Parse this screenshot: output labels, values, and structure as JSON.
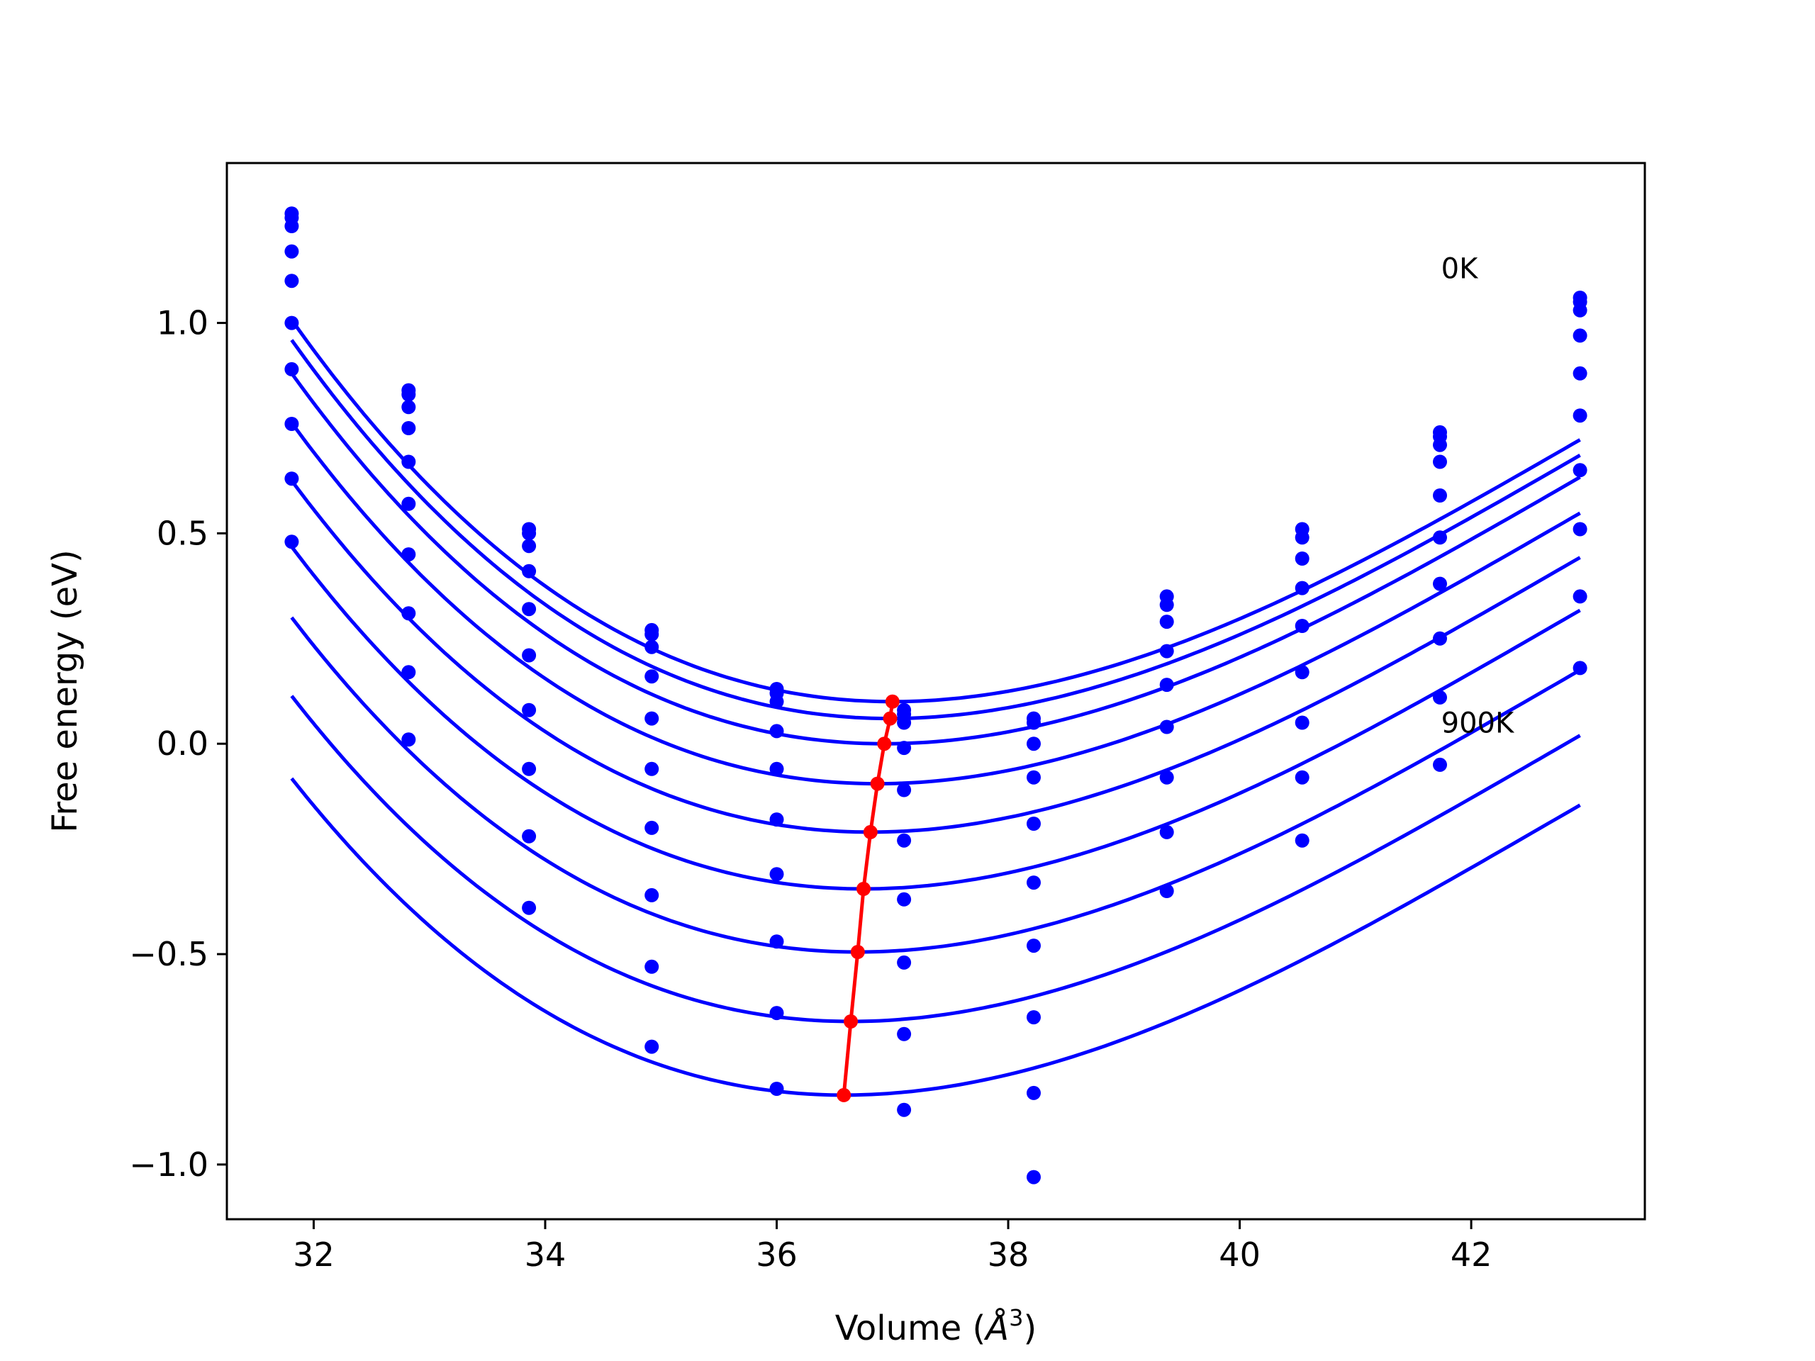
{
  "chart_data": {
    "type": "scatter",
    "title": "",
    "xlabel": "Volume (Å³)",
    "xlabel_main": "Volume (",
    "xlabel_unit": "Å",
    "xlabel_exp": "3",
    "xlabel_close": ")",
    "ylabel": "Free energy (eV)",
    "xlim": [
      31.25,
      43.5
    ],
    "ylim": [
      -1.13,
      1.38
    ],
    "xticks": [
      32,
      34,
      36,
      38,
      40,
      42
    ],
    "xtick_labels": [
      "32",
      "34",
      "36",
      "38",
      "40",
      "42"
    ],
    "yticks": [
      -1.0,
      -0.5,
      0.0,
      0.5,
      1.0
    ],
    "ytick_labels": [
      "−1.0",
      "−0.5",
      "0.0",
      "0.5",
      "1.0"
    ],
    "grid": false,
    "annotations": [
      {
        "text": "0K",
        "x": 41.74,
        "y": 1.13
      },
      {
        "text": "900K",
        "x": 41.74,
        "y": 0.05
      }
    ],
    "fit_color": "#0000ff",
    "minimum_color": "#ff0000",
    "volumes": [
      31.81,
      32.82,
      33.86,
      34.92,
      36.0,
      37.1,
      38.22,
      39.37,
      40.54,
      41.73,
      42.94
    ],
    "fits": [
      {
        "v0": 37.0,
        "e0": 0.1,
        "c": 0.0262
      },
      {
        "v0": 36.98,
        "e0": 0.06,
        "c": 0.0262
      },
      {
        "v0": 36.93,
        "e0": 0.0,
        "c": 0.0262
      },
      {
        "v0": 36.87,
        "e0": -0.095,
        "c": 0.0262
      },
      {
        "v0": 36.81,
        "e0": -0.21,
        "c": 0.0262
      },
      {
        "v0": 36.75,
        "e0": -0.345,
        "c": 0.0262
      },
      {
        "v0": 36.7,
        "e0": -0.495,
        "c": 0.0262
      },
      {
        "v0": 36.64,
        "e0": -0.66,
        "c": 0.0262
      },
      {
        "v0": 36.58,
        "e0": -0.835,
        "c": 0.0262
      }
    ],
    "series": [
      {
        "values": [
          1.26,
          0.84,
          0.51,
          0.27,
          0.13,
          0.08,
          0.06,
          0.35,
          0.51,
          0.74,
          1.06
        ]
      },
      {
        "values": [
          1.25,
          0.83,
          0.5,
          0.26,
          0.12,
          0.07,
          0.05,
          0.33,
          0.49,
          0.73,
          1.05
        ]
      },
      {
        "values": [
          1.23,
          0.8,
          0.47,
          0.23,
          0.1,
          0.05,
          0.0,
          0.29,
          0.44,
          0.71,
          1.03
        ]
      },
      {
        "values": [
          1.17,
          0.75,
          0.41,
          0.16,
          0.03,
          -0.01,
          -0.08,
          0.22,
          0.37,
          0.67,
          0.97
        ]
      },
      {
        "values": [
          1.1,
          0.67,
          0.32,
          0.06,
          -0.06,
          -0.11,
          -0.19,
          0.14,
          0.28,
          0.59,
          0.88
        ]
      },
      {
        "values": [
          1.0,
          0.57,
          0.21,
          -0.06,
          -0.18,
          -0.23,
          -0.33,
          0.04,
          0.17,
          0.49,
          0.78
        ]
      },
      {
        "values": [
          0.89,
          0.45,
          0.08,
          -0.2,
          -0.31,
          -0.37,
          -0.48,
          -0.08,
          0.05,
          0.38,
          0.65
        ]
      },
      {
        "values": [
          0.76,
          0.31,
          -0.06,
          -0.36,
          -0.47,
          -0.52,
          -0.65,
          -0.21,
          -0.08,
          0.25,
          0.51
        ]
      },
      {
        "values": [
          0.63,
          0.17,
          -0.22,
          -0.53,
          -0.64,
          -0.69,
          -0.83,
          -0.35,
          -0.23,
          0.11,
          0.35
        ]
      },
      {
        "values": [
          0.48,
          0.01,
          -0.39,
          -0.72,
          -0.82,
          -0.87,
          -1.03,
          null,
          null,
          -0.05,
          0.18
        ]
      }
    ],
    "minima": {
      "x": [
        37.0,
        36.98,
        36.93,
        36.87,
        36.81,
        36.75,
        36.7,
        36.64,
        36.58
      ],
      "y": [
        0.1,
        0.06,
        0.0,
        -0.095,
        -0.21,
        -0.345,
        -0.495,
        -0.66,
        -0.835
      ]
    }
  }
}
